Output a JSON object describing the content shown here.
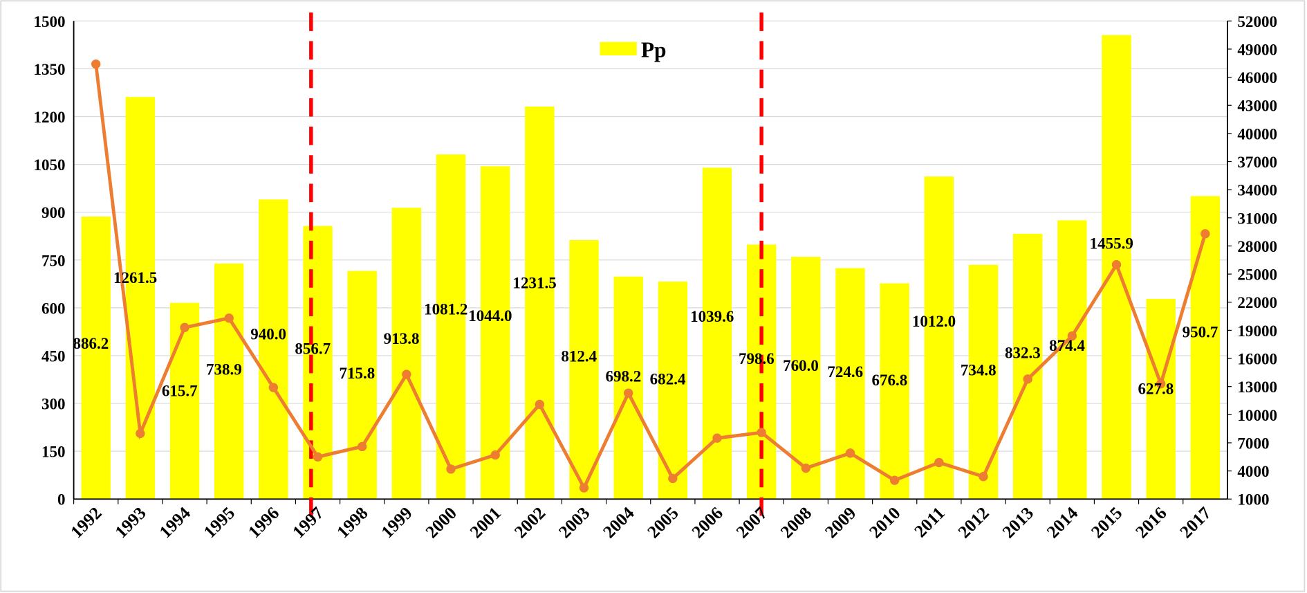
{
  "chart_data": {
    "type": "bar_line",
    "categories": [
      "1992",
      "1993",
      "1994",
      "1995",
      "1996",
      "1997",
      "1998",
      "1999",
      "2000",
      "2001",
      "2002",
      "2003",
      "2004",
      "2005",
      "2006",
      "2007",
      "2008",
      "2009",
      "2010",
      "2011",
      "2012",
      "2013",
      "2014",
      "2015",
      "2016",
      "2017"
    ],
    "series": [
      {
        "name": "Pp",
        "type": "bar",
        "color": "#ffff00",
        "values": [
          886.2,
          1261.5,
          615.7,
          738.9,
          940.0,
          856.7,
          715.8,
          913.8,
          1081.2,
          1044.0,
          1231.5,
          812.4,
          698.2,
          682.4,
          1039.6,
          798.6,
          760.0,
          724.6,
          676.8,
          1012.0,
          734.8,
          832.3,
          874.4,
          1455.9,
          627.8,
          950.7
        ],
        "value_labels": [
          "886.2",
          "1261.5",
          "615.7",
          "738.9",
          "940.0",
          "856.7",
          "715.8",
          "913.8",
          "1081.2",
          "1044.0",
          "1231.5",
          "812.4",
          "698.2",
          "682.4",
          "1039.6",
          "798.6",
          "760.0",
          "724.6",
          "676.8",
          "1012.0",
          "734.8",
          "832.3",
          "874.4",
          "1455.9",
          "627.8",
          "950.7"
        ]
      },
      {
        "type": "line",
        "axis": "y2",
        "color": "#ed7d31",
        "values": [
          47400,
          8000,
          19300,
          20300,
          12900,
          5500,
          6600,
          14300,
          4200,
          5700,
          11100,
          2200,
          12300,
          3200,
          7500,
          8100,
          4300,
          5900,
          3000,
          4900,
          3400,
          13800,
          18400,
          26000,
          13300,
          29300
        ]
      }
    ],
    "ylim": [
      0,
      1500
    ],
    "yticks": [
      0,
      150,
      300,
      450,
      600,
      750,
      900,
      1050,
      1200,
      1350,
      1500
    ],
    "y2lim": [
      1000,
      52000
    ],
    "y2ticks": [
      1000,
      4000,
      7000,
      10000,
      13000,
      16000,
      19000,
      22000,
      25000,
      28000,
      31000,
      34000,
      37000,
      40000,
      43000,
      46000,
      49000,
      52000
    ],
    "grid": true,
    "legend": "top",
    "vertical_markers": {
      "categories": [
        "1997",
        "2007"
      ],
      "color": "#ff0000"
    }
  }
}
